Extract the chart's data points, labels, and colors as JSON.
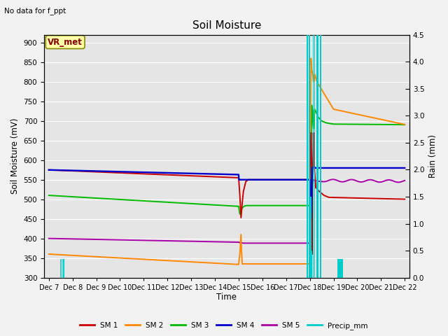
{
  "title": "Soil Moisture",
  "subtitle": "No data for f_ppt",
  "xlabel": "Time",
  "ylabel_left": "Soil Moisture (mV)",
  "ylabel_right": "Rain (mm)",
  "ylim_left": [
    300,
    920
  ],
  "ylim_right": [
    0.0,
    4.5
  ],
  "yticks_left": [
    300,
    350,
    400,
    450,
    500,
    550,
    600,
    650,
    700,
    750,
    800,
    850,
    900
  ],
  "yticks_right": [
    0.0,
    0.5,
    1.0,
    1.5,
    2.0,
    2.5,
    3.0,
    3.5,
    4.0,
    4.5
  ],
  "xtick_labels": [
    "Dec 7",
    "Dec 8",
    "Dec 9",
    "Dec 10",
    "Dec 11",
    "Dec 12",
    "Dec 13",
    "Dec 14",
    "Dec 15",
    "Dec 16",
    "Dec 17",
    "Dec 18",
    "Dec 19",
    "Dec 20",
    "Dec 21",
    "Dec 22"
  ],
  "bg_color": "#e5e5e5",
  "grid_color": "#ffffff",
  "vr_met_box_color": "#ffffaa",
  "vr_met_text_color": "#880000",
  "sm1_color": "#cc0000",
  "sm2_color": "#ff8800",
  "sm3_color": "#00bb00",
  "sm4_color": "#0000cc",
  "sm5_color": "#aa00aa",
  "precip_color": "#00cccc",
  "fig_bg": "#f2f2f2"
}
